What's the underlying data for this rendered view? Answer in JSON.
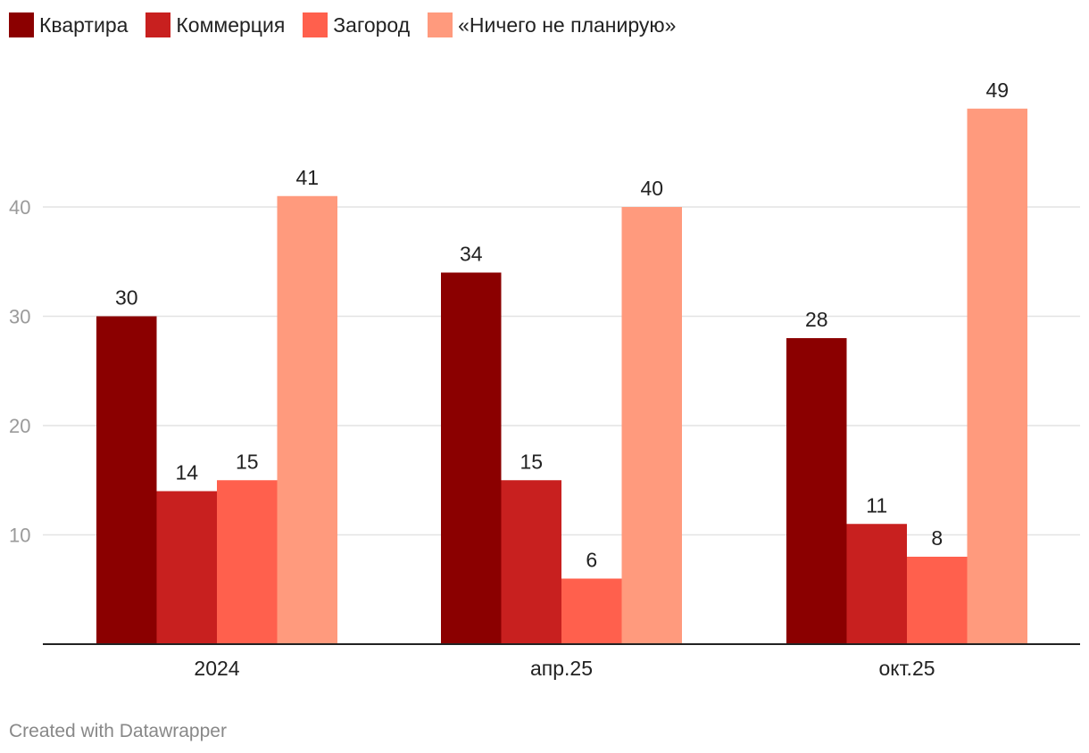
{
  "chart_data": {
    "type": "bar",
    "categories": [
      "2024",
      "апр.25",
      "окт.25"
    ],
    "series": [
      {
        "name": "Квартира",
        "color": "#8b0000",
        "values": [
          30,
          34,
          28
        ]
      },
      {
        "name": "Коммерция",
        "color": "#c8201f",
        "values": [
          14,
          15,
          11
        ]
      },
      {
        "name": "Загород",
        "color": "#ff604d",
        "values": [
          15,
          6,
          8
        ]
      },
      {
        "name": "«Ничего не планирую»",
        "color": "#ff9a7d",
        "values": [
          41,
          40,
          49
        ]
      }
    ],
    "yticks": [
      10,
      20,
      30,
      40
    ],
    "ylim": [
      0,
      49
    ],
    "grid": true,
    "legend_position": "top-left"
  },
  "footer": {
    "credit": "Created with Datawrapper"
  }
}
